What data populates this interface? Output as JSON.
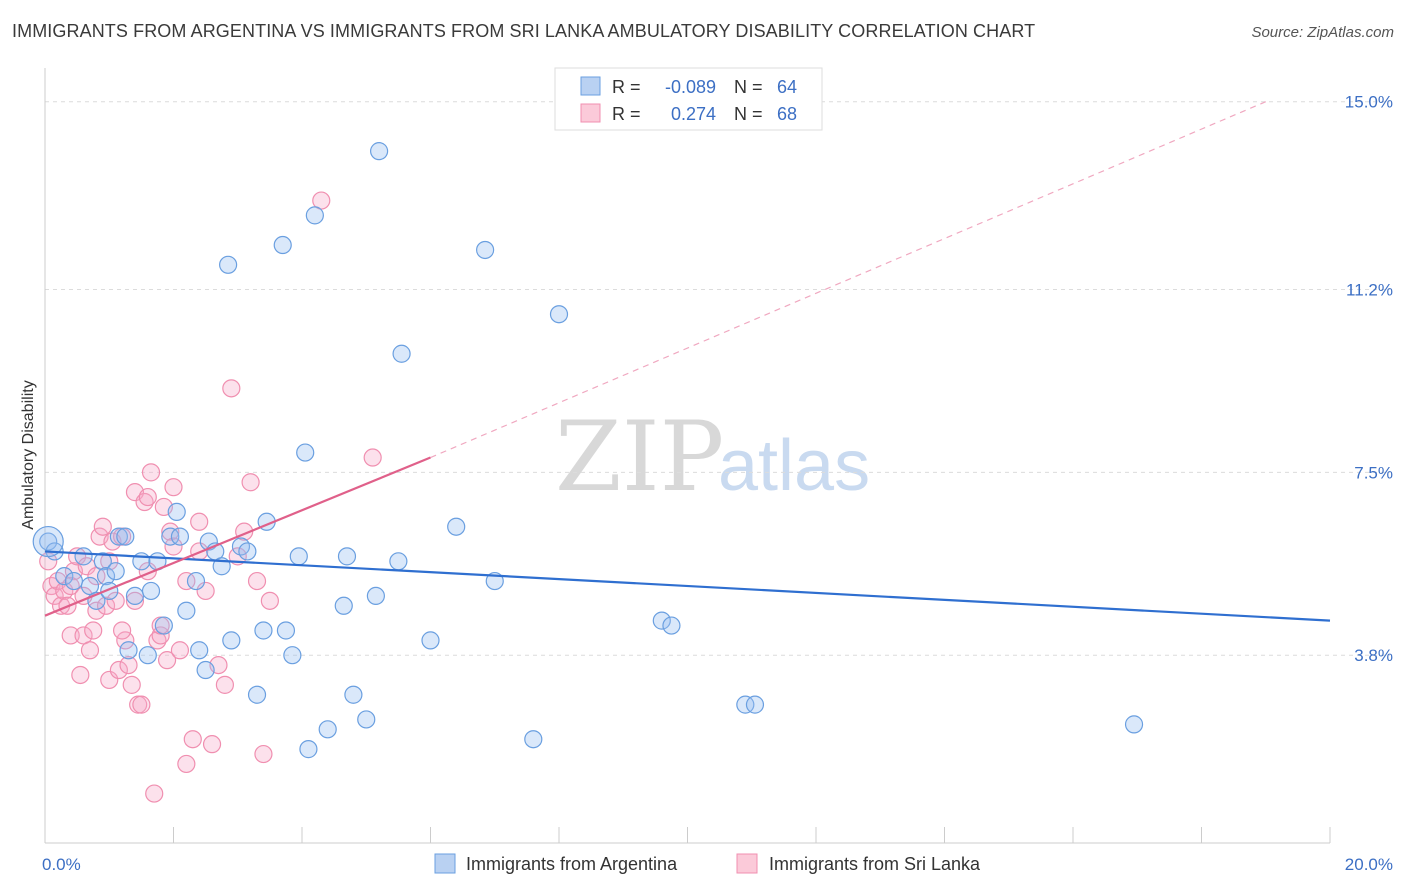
{
  "title": "IMMIGRANTS FROM ARGENTINA VS IMMIGRANTS FROM SRI LANKA AMBULATORY DISABILITY CORRELATION CHART",
  "source": "Source: ZipAtlas.com",
  "watermark": {
    "zip": "ZIP",
    "atlas": "atlas"
  },
  "colors": {
    "blue": "#6a9fe0",
    "blue_line": "#2f6fd0",
    "pink": "#f08fb0",
    "pink_line": "#e0608a",
    "tick": "#3c6fc4"
  },
  "legend": {
    "rows": [
      {
        "r_label": "R =",
        "r_value": "-0.089",
        "n_label": "N =",
        "n_value": "64"
      },
      {
        "r_label": "R =",
        "r_value": "0.274",
        "n_label": "N =",
        "n_value": "68"
      }
    ]
  },
  "chart_data": {
    "type": "scatter",
    "title": "IMMIGRANTS FROM ARGENTINA VS IMMIGRANTS FROM SRI LANKA AMBULATORY DISABILITY CORRELATION CHART",
    "xlabel": "",
    "ylabel": "Ambulatory Disability",
    "xlim": [
      0,
      20
    ],
    "ylim": [
      0,
      15.5
    ],
    "x_tick_labels": [
      "0.0%",
      "20.0%"
    ],
    "y_ticks": [
      3.8,
      7.5,
      11.2,
      15.0
    ],
    "y_tick_labels": [
      "3.8%",
      "7.5%",
      "11.2%",
      "15.0%"
    ],
    "grid": true,
    "legend_placement": "top-center",
    "series": [
      {
        "name": "Immigrants from Argentina",
        "color": "#6a9fe0",
        "trend": {
          "x": [
            0,
            20
          ],
          "y": [
            5.9,
            4.5
          ],
          "style": "solid"
        },
        "points": [
          [
            0.05,
            6.1
          ],
          [
            0.15,
            5.9
          ],
          [
            0.3,
            5.4
          ],
          [
            0.45,
            5.3
          ],
          [
            0.6,
            5.8
          ],
          [
            0.7,
            5.2
          ],
          [
            0.8,
            4.9
          ],
          [
            0.9,
            5.7
          ],
          [
            0.95,
            5.4
          ],
          [
            1.1,
            5.5
          ],
          [
            1.15,
            6.2
          ],
          [
            1.25,
            6.2
          ],
          [
            1.3,
            3.9
          ],
          [
            1.4,
            5.0
          ],
          [
            1.5,
            5.7
          ],
          [
            1.6,
            3.8
          ],
          [
            1.65,
            5.1
          ],
          [
            1.75,
            5.7
          ],
          [
            1.85,
            4.4
          ],
          [
            1.95,
            6.2
          ],
          [
            2.05,
            6.7
          ],
          [
            2.1,
            6.2
          ],
          [
            2.2,
            4.7
          ],
          [
            2.35,
            5.3
          ],
          [
            2.4,
            3.9
          ],
          [
            2.5,
            3.5
          ],
          [
            2.55,
            6.1
          ],
          [
            2.65,
            5.9
          ],
          [
            2.75,
            5.6
          ],
          [
            2.85,
            11.7
          ],
          [
            2.9,
            4.1
          ],
          [
            3.05,
            6.0
          ],
          [
            3.15,
            5.9
          ],
          [
            3.3,
            3.0
          ],
          [
            3.4,
            4.3
          ],
          [
            3.45,
            6.5
          ],
          [
            3.7,
            12.1
          ],
          [
            3.75,
            4.3
          ],
          [
            3.85,
            3.8
          ],
          [
            3.95,
            5.8
          ],
          [
            4.05,
            7.9
          ],
          [
            4.1,
            1.9
          ],
          [
            4.2,
            12.7
          ],
          [
            4.4,
            2.3
          ],
          [
            4.65,
            4.8
          ],
          [
            4.7,
            5.8
          ],
          [
            4.8,
            3.0
          ],
          [
            5.0,
            2.5
          ],
          [
            5.15,
            5.0
          ],
          [
            5.2,
            14.0
          ],
          [
            5.5,
            5.7
          ],
          [
            5.55,
            9.9
          ],
          [
            6.0,
            4.1
          ],
          [
            6.4,
            6.4
          ],
          [
            6.85,
            12.0
          ],
          [
            7.0,
            5.3
          ],
          [
            7.6,
            2.1
          ],
          [
            8.0,
            10.7
          ],
          [
            9.6,
            4.5
          ],
          [
            9.75,
            4.4
          ],
          [
            10.9,
            2.8
          ],
          [
            11.05,
            2.8
          ],
          [
            16.95,
            2.4
          ],
          [
            1.0,
            5.1
          ]
        ]
      },
      {
        "name": "Immigrants from Sri Lanka",
        "color": "#f08fb0",
        "trend": {
          "x": [
            0,
            6.0
          ],
          "y": [
            4.6,
            7.8
          ],
          "style": "solid",
          "extended": {
            "x": [
              6.0,
              19.0
            ],
            "y": [
              7.8,
              15.0
            ],
            "style": "dashed"
          }
        },
        "points": [
          [
            0.05,
            5.7
          ],
          [
            0.1,
            5.2
          ],
          [
            0.15,
            5.0
          ],
          [
            0.2,
            5.3
          ],
          [
            0.25,
            4.8
          ],
          [
            0.3,
            5.1
          ],
          [
            0.35,
            4.8
          ],
          [
            0.4,
            4.2
          ],
          [
            0.45,
            5.5
          ],
          [
            0.5,
            5.8
          ],
          [
            0.55,
            3.4
          ],
          [
            0.6,
            4.2
          ],
          [
            0.65,
            5.6
          ],
          [
            0.7,
            3.9
          ],
          [
            0.75,
            4.3
          ],
          [
            0.8,
            4.7
          ],
          [
            0.85,
            6.2
          ],
          [
            0.9,
            6.4
          ],
          [
            0.95,
            4.8
          ],
          [
            1.0,
            3.3
          ],
          [
            1.05,
            6.1
          ],
          [
            1.1,
            4.9
          ],
          [
            1.15,
            3.5
          ],
          [
            1.2,
            6.2
          ],
          [
            1.25,
            4.1
          ],
          [
            1.3,
            3.6
          ],
          [
            1.35,
            3.2
          ],
          [
            1.4,
            7.1
          ],
          [
            1.45,
            2.8
          ],
          [
            1.5,
            2.8
          ],
          [
            1.55,
            6.9
          ],
          [
            1.6,
            7.0
          ],
          [
            1.65,
            7.5
          ],
          [
            1.7,
            1.0
          ],
          [
            1.75,
            4.1
          ],
          [
            1.8,
            4.2
          ],
          [
            1.85,
            6.8
          ],
          [
            1.9,
            3.7
          ],
          [
            1.95,
            6.3
          ],
          [
            2.0,
            7.2
          ],
          [
            2.1,
            3.9
          ],
          [
            2.2,
            1.6
          ],
          [
            2.3,
            2.1
          ],
          [
            2.4,
            5.9
          ],
          [
            2.5,
            5.1
          ],
          [
            2.6,
            2.0
          ],
          [
            2.7,
            3.6
          ],
          [
            2.8,
            3.2
          ],
          [
            2.9,
            9.2
          ],
          [
            3.0,
            5.8
          ],
          [
            3.1,
            6.3
          ],
          [
            3.2,
            7.3
          ],
          [
            3.3,
            5.3
          ],
          [
            3.4,
            1.8
          ],
          [
            3.5,
            4.9
          ],
          [
            4.3,
            13.0
          ],
          [
            5.1,
            7.8
          ],
          [
            0.4,
            5.2
          ],
          [
            0.6,
            5.0
          ],
          [
            0.8,
            5.4
          ],
          [
            1.0,
            5.7
          ],
          [
            1.2,
            4.3
          ],
          [
            1.4,
            4.9
          ],
          [
            1.6,
            5.5
          ],
          [
            1.8,
            4.4
          ],
          [
            2.0,
            6.0
          ],
          [
            2.2,
            5.3
          ],
          [
            2.4,
            6.5
          ]
        ]
      }
    ]
  },
  "bottom_legend": [
    {
      "label": "Immigrants from Argentina"
    },
    {
      "label": "Immigrants from Sri Lanka"
    }
  ]
}
